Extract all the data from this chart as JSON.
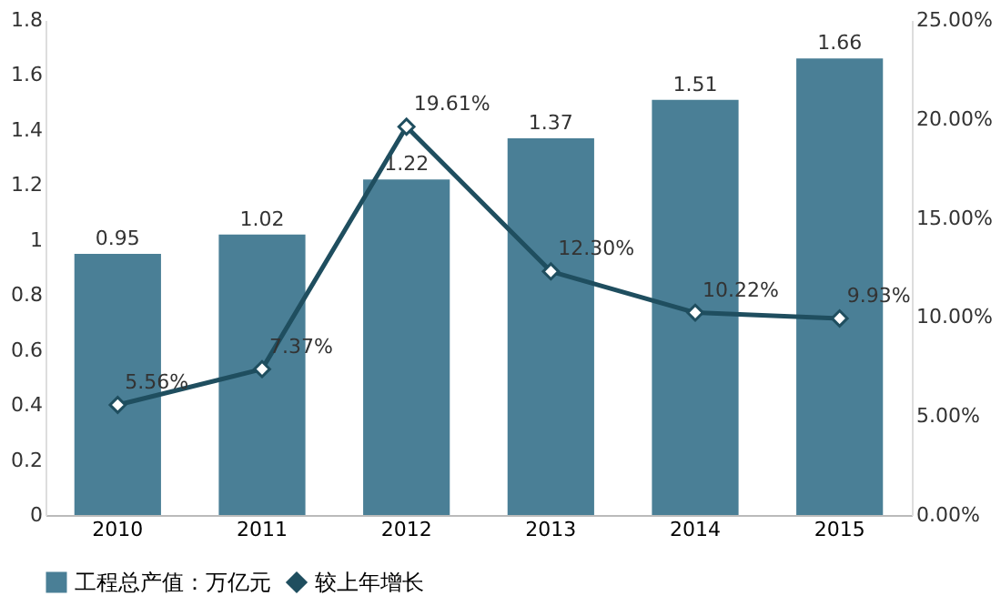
{
  "chart_data": {
    "type": "bar",
    "categories": [
      "2010",
      "2011",
      "2012",
      "2013",
      "2014",
      "2015"
    ],
    "series": [
      {
        "name": "工程总产值：万亿元",
        "type": "bar",
        "color": "#4a7f96",
        "values": [
          0.95,
          1.02,
          1.22,
          1.37,
          1.51,
          1.66
        ]
      },
      {
        "name": "较上年增长",
        "type": "line",
        "axis": "y2",
        "color": "#1f4e5f",
        "marker": "diamond",
        "values": [
          5.56,
          7.37,
          19.61,
          12.3,
          10.22,
          9.93
        ],
        "value_labels": [
          "5.56%",
          "7.37%",
          "19.61%",
          "12.30%",
          "10.22%",
          "9.93%"
        ]
      }
    ],
    "ylim": [
      0,
      1.8
    ],
    "yticks": [
      0,
      0.2,
      0.4,
      0.6,
      0.8,
      1,
      1.2,
      1.4,
      1.6,
      1.8
    ],
    "y2lim": [
      0,
      25
    ],
    "y2ticks": [
      {
        "value": 0,
        "label": "0.00%"
      },
      {
        "value": 5,
        "label": "5.00%"
      },
      {
        "value": 10,
        "label": "10.00%"
      },
      {
        "value": 15,
        "label": "15.00%"
      },
      {
        "value": 20,
        "label": "20.00%"
      },
      {
        "value": 25,
        "label": "25.00%"
      }
    ],
    "data_labels": true,
    "legend": "bottom",
    "grid": false
  }
}
